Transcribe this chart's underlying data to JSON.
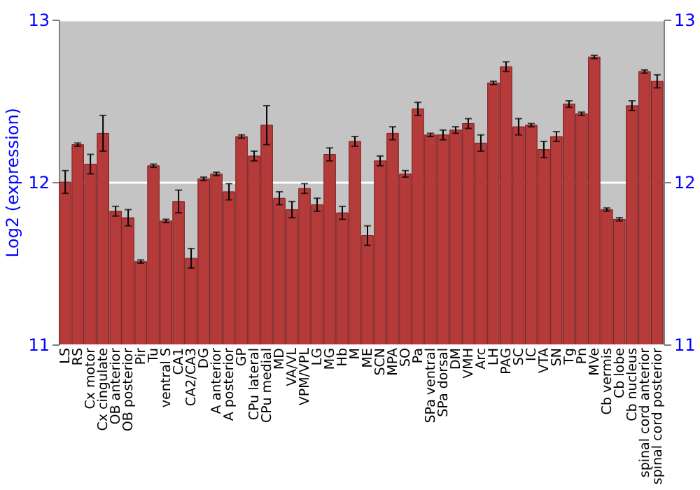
{
  "chart_data": {
    "type": "bar",
    "ylabel": "Log2 (expression)",
    "categories": [
      "LS",
      "RS",
      "Cx motor",
      "Cx cingulate",
      "OB anterior",
      "OB posterior",
      "Pir",
      "Tu",
      "ventral S",
      "CA1",
      "CA2/CA3",
      "DG",
      "A anterior",
      "A posterior",
      "GP",
      "CPu lateral",
      "CPu medial",
      "MD",
      "VA/VL",
      "VPM/VPL",
      "LG",
      "MG",
      "Hb",
      "M",
      "ME",
      "SCN",
      "MPA",
      "SO",
      "Pa",
      "SPa ventral",
      "SPa dorsal",
      "DM",
      "VMH",
      "Arc",
      "LH",
      "PAG",
      "SC",
      "IC",
      "VTA",
      "SN",
      "Tg",
      "Pn",
      "MVe",
      "Cb vermis",
      "Cb lobe",
      "Cb nucleus",
      "spinal cord anterior",
      "spinal cord posterior"
    ],
    "values": [
      12.0,
      12.23,
      12.11,
      12.3,
      11.82,
      11.78,
      11.51,
      12.1,
      11.76,
      11.88,
      11.53,
      12.02,
      12.05,
      11.94,
      12.28,
      12.16,
      12.35,
      11.9,
      11.83,
      11.96,
      11.86,
      12.17,
      11.81,
      12.25,
      11.67,
      12.13,
      12.3,
      12.05,
      12.45,
      12.29,
      12.29,
      12.32,
      12.36,
      12.24,
      12.61,
      12.71,
      12.34,
      12.35,
      12.2,
      12.28,
      12.48,
      12.42,
      12.77,
      11.83,
      11.77,
      12.47,
      12.68,
      12.62
    ],
    "errors": [
      0.07,
      0.01,
      0.06,
      0.11,
      0.03,
      0.05,
      0.01,
      0.01,
      0.01,
      0.07,
      0.06,
      0.01,
      0.01,
      0.05,
      0.01,
      0.03,
      0.12,
      0.04,
      0.05,
      0.03,
      0.04,
      0.04,
      0.04,
      0.03,
      0.06,
      0.03,
      0.04,
      0.02,
      0.04,
      0.01,
      0.03,
      0.02,
      0.03,
      0.05,
      0.01,
      0.03,
      0.05,
      0.01,
      0.05,
      0.03,
      0.02,
      0.01,
      0.01,
      0.01,
      0.01,
      0.03,
      0.01,
      0.04
    ],
    "color": "#b53a3a",
    "ylim": [
      11,
      13
    ],
    "yticks": [
      11,
      12,
      13
    ],
    "y2lim": [
      11,
      13
    ],
    "y2ticks": [
      11,
      12,
      13
    ],
    "grid": "y"
  }
}
